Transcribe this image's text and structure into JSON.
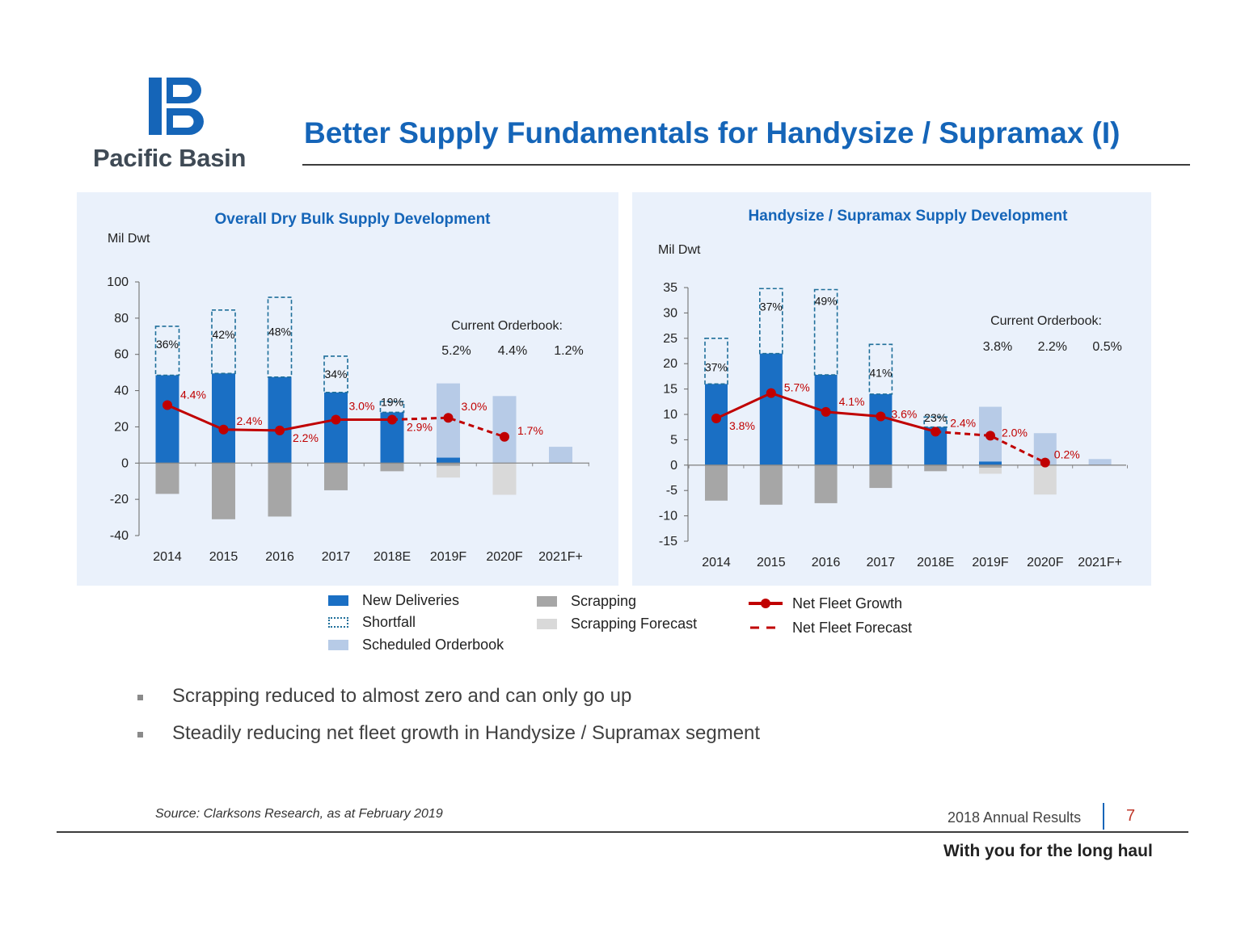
{
  "header": {
    "brand": "Pacific Basin",
    "title": "Better Supply Fundamentals for Handysize / Supramax (I)"
  },
  "colors": {
    "brand_blue": "#1565b8",
    "new_deliveries": "#1a6fc4",
    "shortfall_stroke": "#1f6f9a",
    "scheduled_orderbook": "#b7cbe7",
    "scrapping": "#a6a6a6",
    "scrapping_forecast": "#d9d9d9",
    "net_fleet": "#c00000",
    "panel_bg": "#eaf1fb"
  },
  "chart_data": [
    {
      "type": "bar",
      "title": "Overall Dry Bulk Supply Development",
      "ylabel": "Mil Dwt",
      "categories": [
        "2014",
        "2015",
        "2016",
        "2017",
        "2018E",
        "2019F",
        "2020F",
        "2021F+"
      ],
      "ylim": [
        -40,
        100
      ],
      "yticks": [
        100,
        80,
        60,
        40,
        20,
        0,
        -20,
        -40
      ],
      "series": [
        {
          "name": "New Deliveries",
          "values": [
            48.5,
            49.5,
            47.5,
            39,
            28,
            3,
            0,
            0
          ]
        },
        {
          "name": "Shortfall",
          "values": [
            27,
            35,
            44,
            20,
            6,
            0,
            0,
            0
          ]
        },
        {
          "name": "Scheduled Orderbook",
          "values": [
            0,
            0,
            0,
            0,
            0,
            44,
            37,
            9
          ]
        },
        {
          "name": "Scrapping",
          "values": [
            -17,
            -31,
            -29.5,
            -15,
            -4.5,
            -1.5,
            0,
            0
          ]
        },
        {
          "name": "Scrapping Forecast",
          "values": [
            0,
            0,
            0,
            0,
            0,
            -8,
            -17.5,
            0
          ]
        },
        {
          "name": "Net Fleet Growth",
          "values": [
            32,
            18.5,
            18,
            24,
            24,
            null,
            null,
            null
          ]
        },
        {
          "name": "Net Fleet Forecast",
          "values": [
            null,
            null,
            null,
            null,
            24,
            25,
            14.5,
            null
          ]
        }
      ],
      "shortfall_labels": [
        "36%",
        "42%",
        "48%",
        "34%",
        "19%"
      ],
      "growth_labels": [
        "4.4%",
        "2.4%",
        "2.2%",
        "3.0%",
        "2.9%",
        "3.0%",
        "1.7%"
      ],
      "orderbook_heading": "Current Orderbook:",
      "orderbook_pcts": [
        "5.2%",
        "4.4%",
        "1.2%"
      ]
    },
    {
      "type": "bar",
      "title": "Handysize / Supramax Supply Development",
      "ylabel": "Mil Dwt",
      "categories": [
        "2014",
        "2015",
        "2016",
        "2017",
        "2018E",
        "2019F",
        "2020F",
        "2021F+"
      ],
      "ylim": [
        -15,
        35
      ],
      "yticks": [
        35,
        30,
        25,
        20,
        15,
        10,
        5,
        0,
        -5,
        -10,
        -15
      ],
      "series": [
        {
          "name": "New Deliveries",
          "values": [
            16,
            22,
            17.8,
            14,
            7.5,
            0.7,
            0,
            0
          ]
        },
        {
          "name": "Shortfall",
          "values": [
            9,
            12.8,
            16.8,
            9.8,
            2,
            0,
            0,
            0
          ]
        },
        {
          "name": "Scheduled Orderbook",
          "values": [
            0,
            0,
            0,
            0,
            0,
            11.5,
            6.3,
            1.2
          ]
        },
        {
          "name": "Scrapping",
          "values": [
            -7,
            -7.8,
            -7.5,
            -4.5,
            -1.2,
            -0.5,
            0,
            0
          ]
        },
        {
          "name": "Scrapping Forecast",
          "values": [
            0,
            0,
            0,
            0,
            0,
            -1.7,
            -5.8,
            0
          ]
        },
        {
          "name": "Net Fleet Growth",
          "values": [
            9.2,
            14.2,
            10.5,
            9.6,
            6.6,
            null,
            null,
            null
          ]
        },
        {
          "name": "Net Fleet Forecast",
          "values": [
            null,
            null,
            null,
            null,
            6.6,
            5.8,
            0.5,
            null
          ]
        }
      ],
      "shortfall_labels": [
        "37%",
        "37%",
        "49%",
        "41%",
        "23%"
      ],
      "growth_labels": [
        "3.8%",
        "5.7%",
        "4.1%",
        "3.6%",
        "2.4%",
        "2.0%",
        "0.2%"
      ],
      "orderbook_heading": "Current Orderbook:",
      "orderbook_pcts": [
        "3.8%",
        "2.2%",
        "0.5%"
      ]
    }
  ],
  "legend": {
    "new_deliveries": "New Deliveries",
    "shortfall": "Shortfall",
    "scheduled_orderbook": "Scheduled Orderbook",
    "scrapping": "Scrapping",
    "scrapping_forecast": "Scrapping Forecast",
    "net_fleet_growth": "Net Fleet Growth",
    "net_fleet_forecast": "Net Fleet Forecast"
  },
  "bullets": [
    "Scrapping reduced to almost zero and can only go up",
    "Steadily reducing net fleet growth in Handysize / Supramax segment"
  ],
  "footer": {
    "source": "Source: Clarksons Research, as at February 2019",
    "annual": "2018 Annual Results",
    "page": "7",
    "tagline": "With you for the long haul"
  }
}
